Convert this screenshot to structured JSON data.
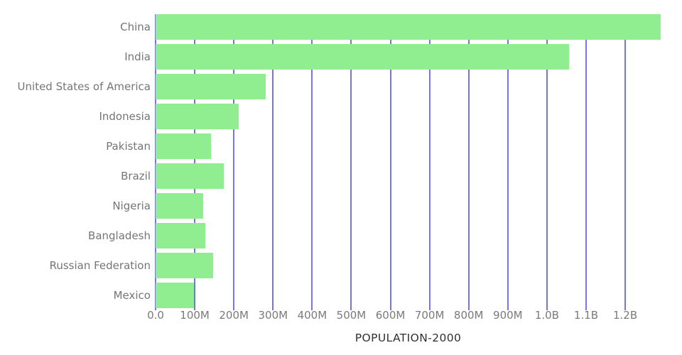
{
  "chart_data": {
    "type": "bar",
    "orientation": "horizontal",
    "title": "POPULATION-2000",
    "categories": [
      "China",
      "India",
      "United States of America",
      "Indonesia",
      "Pakistan",
      "Brazil",
      "Nigeria",
      "Bangladesh",
      "Russian Federation",
      "Mexico"
    ],
    "values_millions": [
      1290.6,
      1056.6,
      281.7,
      211.5,
      142.3,
      174.8,
      122.3,
      127.7,
      146.4,
      98.9
    ],
    "xlabel": "",
    "ylabel": "",
    "xlim_millions": [
      0,
      1290.6
    ],
    "x_tick_values_millions": [
      0,
      100,
      200,
      300,
      400,
      500,
      600,
      700,
      800,
      900,
      1000,
      1100,
      1200
    ],
    "x_tick_labels": [
      "0.0",
      "100M",
      "200M",
      "300M",
      "400M",
      "500M",
      "600M",
      "700M",
      "800M",
      "900M",
      "1.0B",
      "1.1B",
      "1.2B"
    ],
    "grid": "vertical-gridlines-behind-bars",
    "legend": "none",
    "colors": {
      "bar": "#90ee90",
      "gridline": "#7573f0",
      "category_label": "#757575",
      "tick_label": "#7a7a7a",
      "title": "#303030",
      "background": "#ffffff"
    }
  }
}
